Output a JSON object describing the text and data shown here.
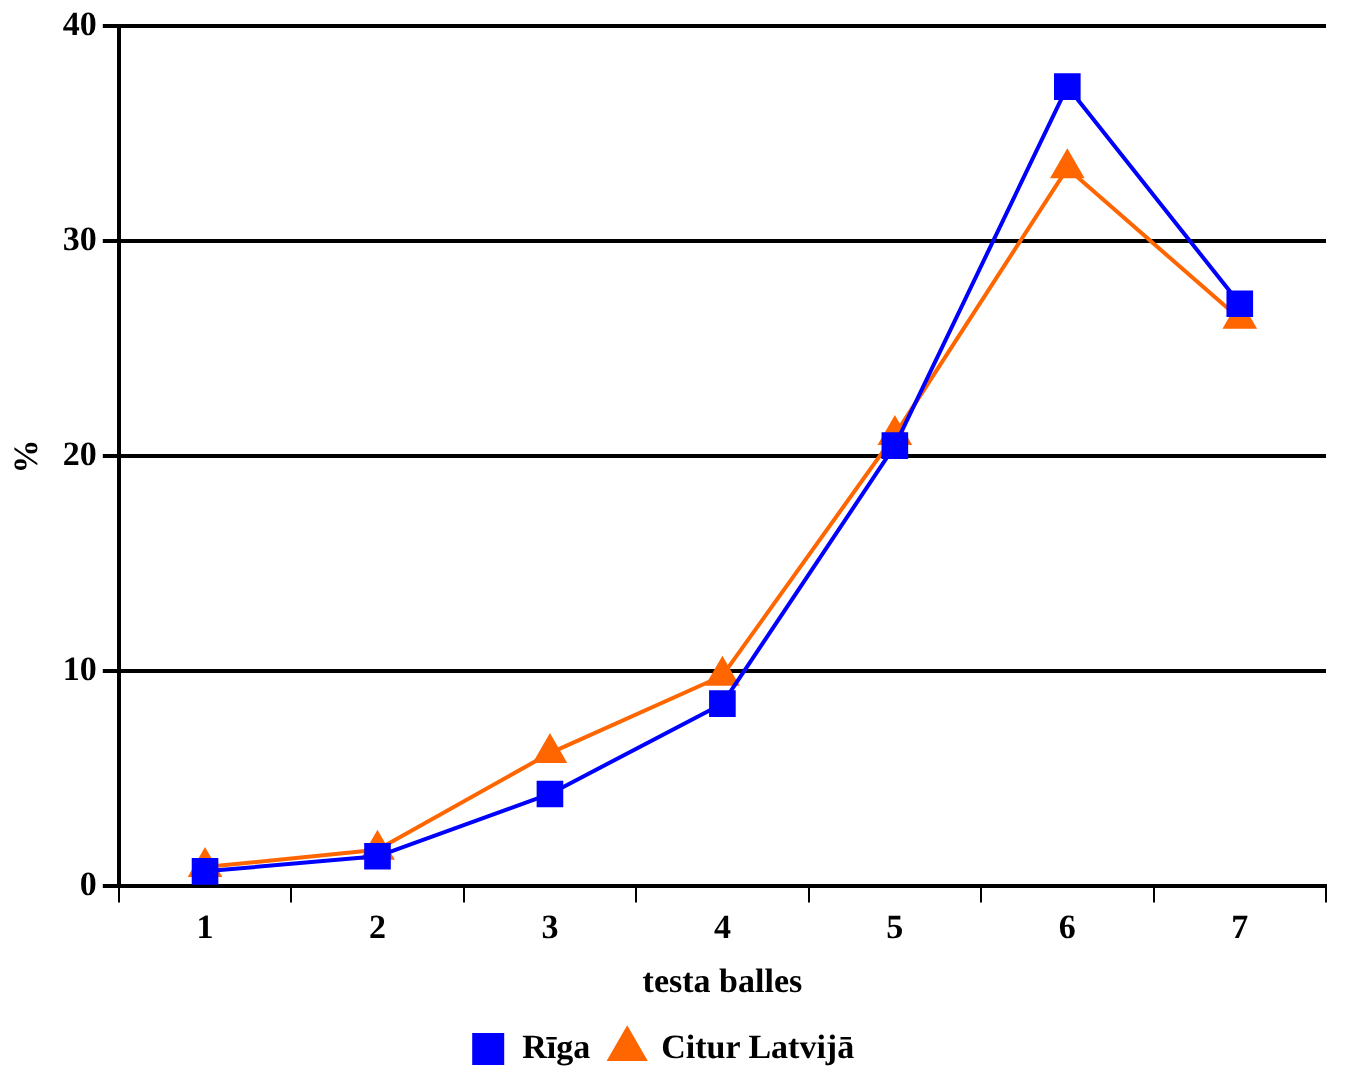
{
  "chart_data": {
    "type": "line",
    "xlabel": "testa balles",
    "ylabel": "%",
    "categories": [
      "1",
      "2",
      "3",
      "4",
      "5",
      "6",
      "7"
    ],
    "ylim": [
      0,
      40
    ],
    "yticks": [
      0,
      10,
      20,
      30,
      40
    ],
    "grid": "y",
    "legend": "bottom",
    "line_style": "solid",
    "series": [
      {
        "name": "Rīga",
        "color": "#0000ff",
        "marker": "square",
        "values": [
          0.7,
          1.4,
          4.3,
          8.5,
          20.5,
          37.2,
          27.1
        ]
      },
      {
        "name": "Citur Latvijā",
        "color": "#ff6600",
        "marker": "triangle",
        "values": [
          0.9,
          1.7,
          6.2,
          9.8,
          21.0,
          33.4,
          26.4
        ]
      }
    ]
  }
}
